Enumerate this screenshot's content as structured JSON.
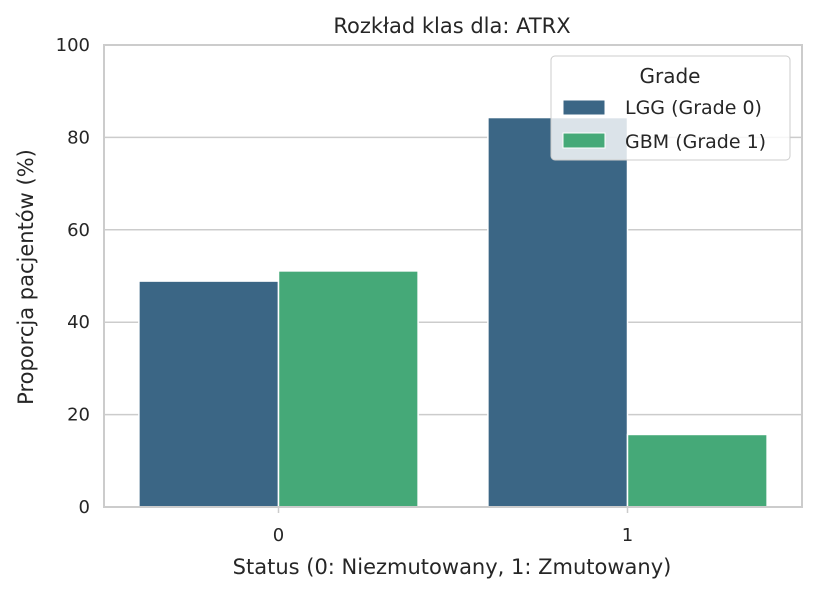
{
  "chart_data": {
    "type": "bar",
    "title": "Rozkład klas dla: ATRX",
    "xlabel": "Status (0: Niezmutowany, 1: Zmutowany)",
    "ylabel": "Proporcja pacjentów (%)",
    "categories": [
      "0",
      "1"
    ],
    "series": [
      {
        "name": "LGG (Grade 0)",
        "values": [
          48.9,
          84.3
        ],
        "color": "#3b6685"
      },
      {
        "name": "GBM (Grade 1)",
        "values": [
          51.1,
          15.7
        ],
        "color": "#45a978"
      }
    ],
    "ylim": [
      0,
      100
    ],
    "yticks": [
      0,
      20,
      40,
      60,
      80,
      100
    ],
    "grid": true,
    "legend": {
      "title": "Grade",
      "placement": "top-right"
    }
  }
}
